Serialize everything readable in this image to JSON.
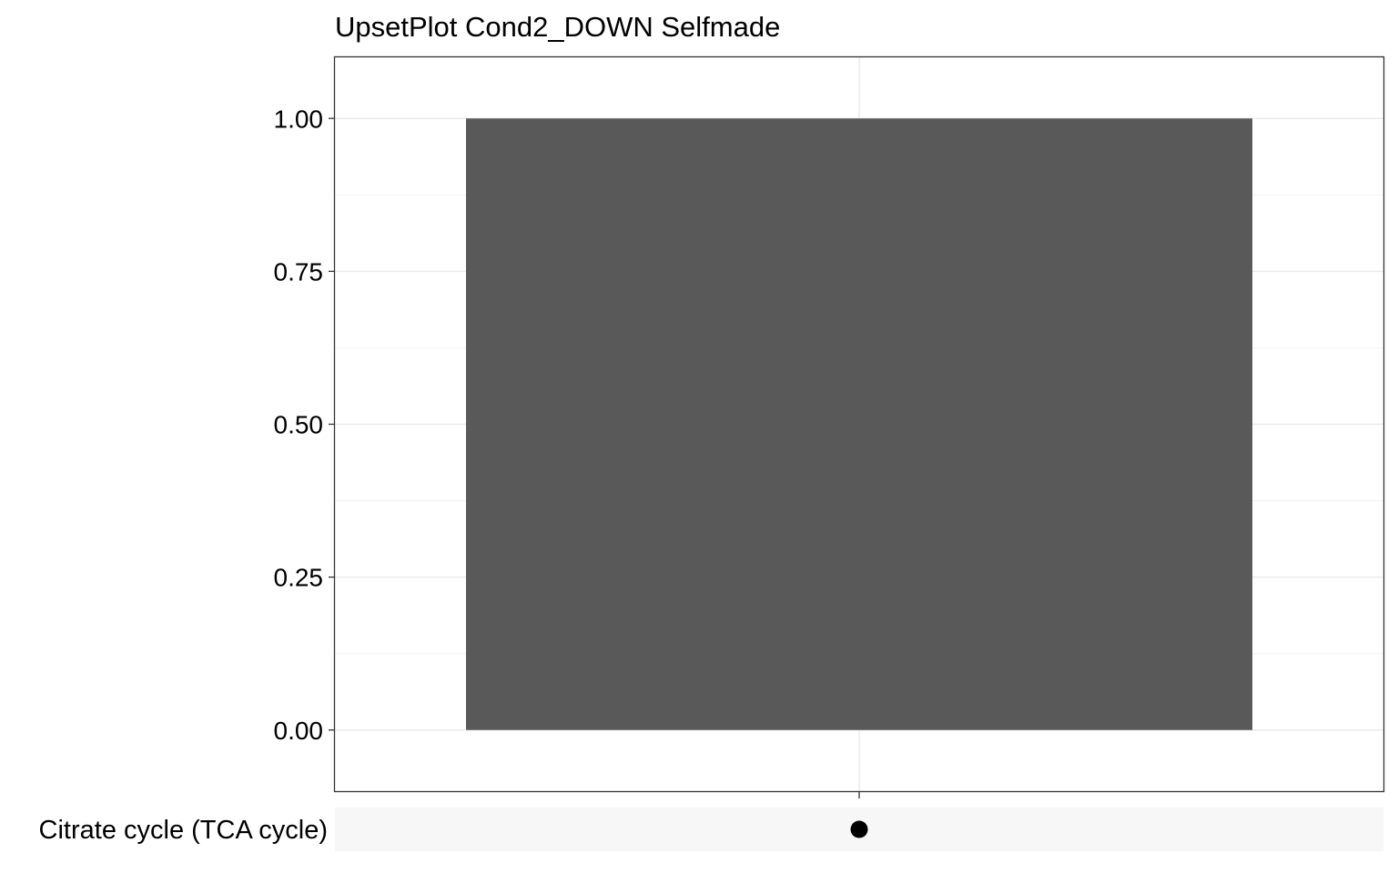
{
  "chart_data": {
    "type": "bar",
    "title": "UpsetPlot Cond2_DOWN Selfmade",
    "xlabel": "",
    "ylabel": "",
    "ylim": [
      -0.1,
      1.1
    ],
    "y_ticks": [
      0.0,
      0.25,
      0.5,
      0.75,
      1.0
    ],
    "y_tick_labels": [
      "0.00",
      "0.25",
      "0.50",
      "0.75",
      "1.00"
    ],
    "intersections": [
      {
        "value": 1.0,
        "sets": [
          "Citrate cycle (TCA cycle)"
        ]
      }
    ],
    "sets": [
      "Citrate cycle (TCA cycle)"
    ],
    "grid": true,
    "legend": "none",
    "colors": {
      "bar": "#595959",
      "dot": "#000000",
      "grid_major": "#ebebeb",
      "grid_minor": "#f3f3f3",
      "matrix_band": "#f7f7f7",
      "panel_border": "#333333"
    }
  }
}
